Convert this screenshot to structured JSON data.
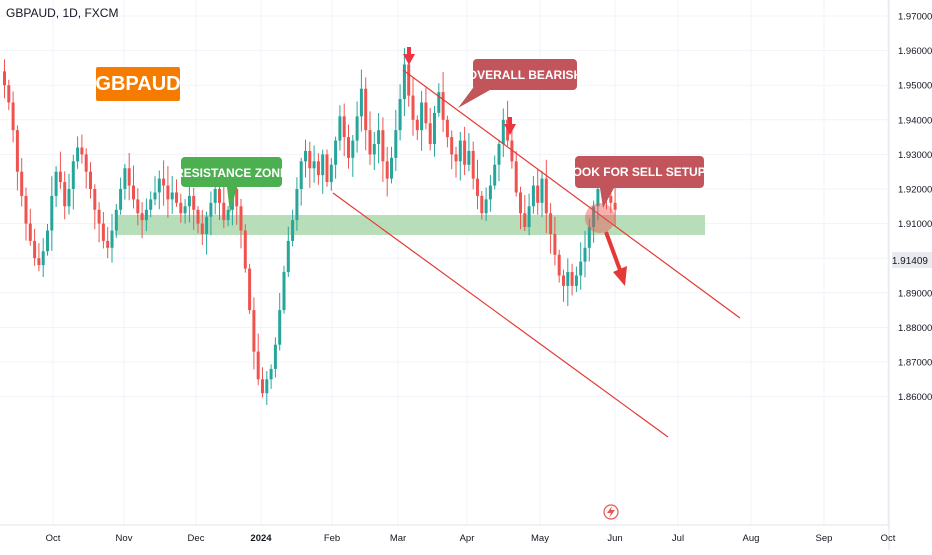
{
  "header": {
    "symbol": "GBPAUD, 1D, FXCM"
  },
  "badge": {
    "text": "GBPAUD",
    "color": "#f57c00"
  },
  "annotations": {
    "resistance_zone": "RESISTANCE ZONE",
    "overall_bearish": "OVERALL BEARISH",
    "look_for_sell": "LOOK FOR SELL SETUPS"
  },
  "colors": {
    "up": "#26a69a",
    "down": "#ef5350",
    "zone": "#a5d6a7",
    "channel": "#e53935",
    "callout_green": "#4caf50",
    "callout_red": "#c2545c",
    "price_badge": "#e8eaed"
  },
  "icons": {
    "flash": "lightning-bolt-icon",
    "down_arrow": "down-arrow-icon"
  },
  "chart_data": {
    "type": "candlestick",
    "title": "GBPAUD, 1D, FXCM",
    "ylim": [
      1.855,
      1.975
    ],
    "y_ticks": [
      "1.97000",
      "1.96000",
      "1.95000",
      "1.94000",
      "1.93000",
      "1.92000",
      "1.91000",
      "1.90000",
      "1.89000",
      "1.88000",
      "1.87000",
      "1.86000"
    ],
    "x_ticks": [
      "Oct",
      "Nov",
      "Dec",
      "2024",
      "Feb",
      "Mar",
      "Apr",
      "May",
      "Jun",
      "Jul",
      "Aug",
      "Sep",
      "Oct"
    ],
    "last_price": "1.91409",
    "resistance_zone": [
      1.92,
      1.925
    ],
    "close": [
      1.95,
      1.945,
      1.937,
      1.925,
      1.918,
      1.91,
      1.905,
      1.9,
      1.898,
      1.902,
      1.908,
      1.918,
      1.925,
      1.922,
      1.915,
      1.92,
      1.928,
      1.932,
      1.93,
      1.925,
      1.92,
      1.914,
      1.91,
      1.905,
      1.903,
      1.908,
      1.914,
      1.92,
      1.926,
      1.921,
      1.917,
      1.913,
      1.911,
      1.914,
      1.917,
      1.919,
      1.923,
      1.921,
      1.917,
      1.919,
      1.916,
      1.913,
      1.915,
      1.918,
      1.914,
      1.91,
      1.907,
      1.912,
      1.916,
      1.92,
      1.916,
      1.911,
      1.914,
      1.92,
      1.915,
      1.908,
      1.897,
      1.885,
      1.873,
      1.865,
      1.861,
      1.865,
      1.868,
      1.875,
      1.885,
      1.896,
      1.905,
      1.911,
      1.92,
      1.928,
      1.931,
      1.926,
      1.928,
      1.924,
      1.93,
      1.922,
      1.927,
      1.934,
      1.941,
      1.935,
      1.929,
      1.934,
      1.941,
      1.949,
      1.937,
      1.93,
      1.933,
      1.937,
      1.928,
      1.923,
      1.929,
      1.937,
      1.946,
      1.956,
      1.947,
      1.94,
      1.937,
      1.945,
      1.939,
      1.933,
      1.942,
      1.948,
      1.94,
      1.935,
      1.93,
      1.928,
      1.934,
      1.927,
      1.931,
      1.923,
      1.918,
      1.913,
      1.917,
      1.921,
      1.927,
      1.933,
      1.94,
      1.934,
      1.928,
      1.919,
      1.913,
      1.909,
      1.915,
      1.921,
      1.916,
      1.923,
      1.913,
      1.907,
      1.901,
      1.895,
      1.892,
      1.896,
      1.892,
      1.895,
      1.899,
      1.903,
      1.909,
      1.915,
      1.92,
      1.922,
      1.918,
      1.916,
      1.914
    ]
  }
}
